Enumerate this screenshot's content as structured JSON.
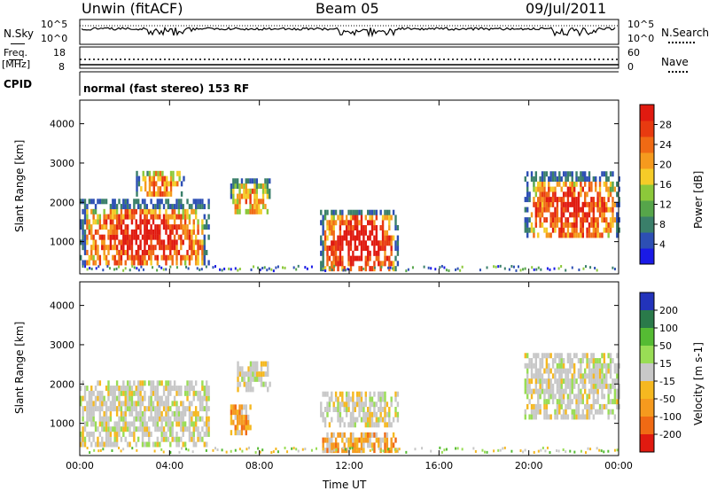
{
  "header": {
    "station": "Unwin (fitACF)",
    "beam": "Beam 05",
    "date": "09/Jul/2011"
  },
  "noise_panel": {
    "left_label": "N.Sky",
    "right_label": "N.Search",
    "left_ticks": [
      "10^5",
      "10^0"
    ],
    "right_ticks": [
      "10^5",
      "10^0"
    ]
  },
  "freq_panel": {
    "left_label_1": "Freq.",
    "left_label_2": "[MHz]",
    "right_label": "Nave",
    "left_ticks": [
      "18",
      "8"
    ],
    "right_ticks": [
      "60",
      "0"
    ]
  },
  "cpid_panel": {
    "label": "CPID",
    "text": "normal (fast stereo) 153 RF"
  },
  "chart_data": [
    {
      "type": "heatmap",
      "name": "power",
      "ylabel": "Slant Range [km]",
      "ylim": [
        180,
        4600
      ],
      "yticks": [
        1000,
        2000,
        3000,
        4000
      ],
      "xlim": [
        0,
        24
      ],
      "colorbar_label": "Power [dB]",
      "colorbar_ticks": [
        "4",
        "8",
        "12",
        "16",
        "20",
        "24",
        "28"
      ],
      "colors": [
        "#1a1ae6",
        "#2d4fb4",
        "#3a7f6a",
        "#56a54a",
        "#8cc83a",
        "#f5cc28",
        "#f59a1e",
        "#f06a14",
        "#e83a10",
        "#e01a10"
      ],
      "blobs": [
        {
          "t0": 0.0,
          "t1": 5.7,
          "r0": 400,
          "r1": 2000,
          "core": 0.6
        },
        {
          "t0": 2.5,
          "t1": 4.6,
          "r0": 2150,
          "r1": 2800,
          "core": 0.35
        },
        {
          "t0": 6.7,
          "t1": 8.5,
          "r0": 1700,
          "r1": 2500,
          "core": 0.3
        },
        {
          "t0": 10.7,
          "t1": 14.2,
          "r0": 250,
          "r1": 1800,
          "core": 0.7
        },
        {
          "t0": 19.8,
          "t1": 24.0,
          "r0": 1100,
          "r1": 2700,
          "core": 0.55
        }
      ]
    },
    {
      "type": "heatmap",
      "name": "velocity",
      "ylabel": "Slant Range [km]",
      "xlabel": "Time UT",
      "ylim": [
        180,
        4600
      ],
      "yticks": [
        1000,
        2000,
        3000,
        4000
      ],
      "xlim": [
        0,
        24
      ],
      "xticks": [
        "00:00",
        "04:00",
        "08:00",
        "12:00",
        "16:00",
        "20:00",
        "00:00"
      ],
      "colorbar_label": "Velocity [m s-1]",
      "colorbar_ticks": [
        "200",
        "100",
        "50",
        "15",
        "-15",
        "-50",
        "-100",
        "-200"
      ],
      "colors": [
        "#2233bb",
        "#2a7a4a",
        "#55bb33",
        "#99dd55",
        "#c8c8c8",
        "#f5b820",
        "#f59a1e",
        "#f06a14",
        "#e01a10"
      ],
      "blobs": [
        {
          "t0": 0.0,
          "t1": 5.7,
          "r0": 400,
          "r1": 2000,
          "shade": "grey"
        },
        {
          "t0": 6.7,
          "t1": 7.6,
          "r0": 700,
          "r1": 1400,
          "shade": "orange"
        },
        {
          "t0": 7.0,
          "t1": 8.5,
          "r0": 1800,
          "r1": 2500,
          "shade": "grey"
        },
        {
          "t0": 10.7,
          "t1": 14.2,
          "r0": 900,
          "r1": 1800,
          "shade": "grey"
        },
        {
          "t0": 10.7,
          "t1": 14.2,
          "r0": 250,
          "r1": 700,
          "shade": "orange"
        },
        {
          "t0": 19.8,
          "t1": 24.0,
          "r0": 1100,
          "r1": 2700,
          "shade": "grey"
        }
      ]
    }
  ]
}
